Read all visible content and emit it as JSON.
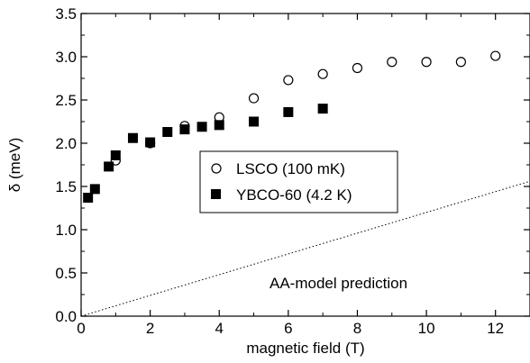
{
  "chart_data": {
    "type": "scatter",
    "xlabel": "magnetic field  (T)",
    "ylabel": "δ (meV)",
    "xlim": [
      0,
      13
    ],
    "ylim": [
      0,
      3.5
    ],
    "x_ticks": [
      0,
      2,
      4,
      6,
      8,
      10,
      12
    ],
    "x_tick_labels": [
      "0",
      "2",
      "4",
      "6",
      "8",
      "10",
      "12"
    ],
    "y_ticks": [
      0,
      0.5,
      1.0,
      1.5,
      2.0,
      2.5,
      3.0,
      3.5
    ],
    "y_tick_labels": [
      "0.0",
      "0.5",
      "1.0",
      "1.5",
      "2.0",
      "2.5",
      "3.0",
      "3.5"
    ],
    "grid": false,
    "legend_position": "center",
    "series": [
      {
        "name": "LSCO (100 mK)",
        "marker": "open-circle",
        "color": "#000000",
        "points": [
          {
            "x": 1.0,
            "y": 1.8
          },
          {
            "x": 2.0,
            "y": 2.0
          },
          {
            "x": 3.0,
            "y": 2.2
          },
          {
            "x": 4.0,
            "y": 2.3
          },
          {
            "x": 5.0,
            "y": 2.52
          },
          {
            "x": 6.0,
            "y": 2.73
          },
          {
            "x": 7.0,
            "y": 2.8
          },
          {
            "x": 8.0,
            "y": 2.87
          },
          {
            "x": 9.0,
            "y": 2.94
          },
          {
            "x": 10.0,
            "y": 2.94
          },
          {
            "x": 11.0,
            "y": 2.94
          },
          {
            "x": 12.0,
            "y": 3.01
          }
        ]
      },
      {
        "name": "YBCO-60 (4.2 K)",
        "marker": "filled-square",
        "color": "#000000",
        "points": [
          {
            "x": 0.2,
            "y": 1.37
          },
          {
            "x": 0.4,
            "y": 1.47
          },
          {
            "x": 0.8,
            "y": 1.73
          },
          {
            "x": 1.0,
            "y": 1.86
          },
          {
            "x": 1.5,
            "y": 2.06
          },
          {
            "x": 2.0,
            "y": 2.01
          },
          {
            "x": 2.5,
            "y": 2.13
          },
          {
            "x": 3.0,
            "y": 2.16
          },
          {
            "x": 3.5,
            "y": 2.19
          },
          {
            "x": 4.0,
            "y": 2.21
          },
          {
            "x": 5.0,
            "y": 2.25
          },
          {
            "x": 6.0,
            "y": 2.36
          },
          {
            "x": 7.0,
            "y": 2.4
          }
        ]
      }
    ],
    "model_line": {
      "style": "dotted",
      "from": {
        "x": 0,
        "y": 0
      },
      "to": {
        "x": 13,
        "y": 1.56
      }
    },
    "annotation": "AA-model prediction"
  }
}
